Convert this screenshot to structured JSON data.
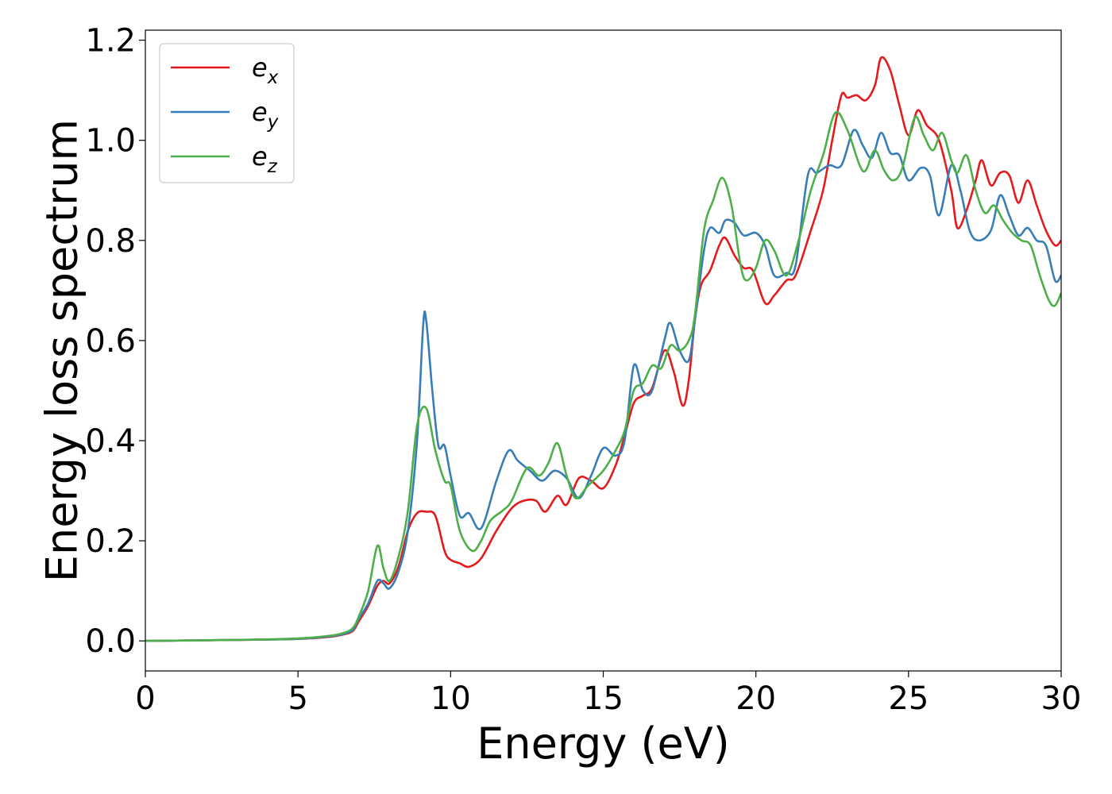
{
  "chart_data": {
    "type": "line",
    "xlabel": "Energy (eV)",
    "ylabel": "Energy loss spectrum",
    "xlim": [
      0,
      30
    ],
    "ylim": [
      -0.06,
      1.22
    ],
    "xticks": [
      0,
      5,
      10,
      15,
      20,
      25,
      30
    ],
    "yticks": [
      0.0,
      0.2,
      0.4,
      0.6,
      0.8,
      1.0,
      1.2
    ],
    "xtick_labels": [
      "0",
      "5",
      "10",
      "15",
      "20",
      "25",
      "30"
    ],
    "ytick_labels": [
      "0.0",
      "0.2",
      "0.4",
      "0.6",
      "0.8",
      "1.0",
      "1.2"
    ],
    "grid": false,
    "legend_position": "top-left",
    "series": [
      {
        "name": "e_x",
        "label_base": "e",
        "label_sub": "x",
        "color": "#e41a1c",
        "points": [
          [
            0,
            0.0
          ],
          [
            3,
            0.002
          ],
          [
            5,
            0.004
          ],
          [
            6,
            0.008
          ],
          [
            6.5,
            0.013
          ],
          [
            6.8,
            0.02
          ],
          [
            7.0,
            0.04
          ],
          [
            7.3,
            0.07
          ],
          [
            7.6,
            0.11
          ],
          [
            7.8,
            0.12
          ],
          [
            8.0,
            0.115
          ],
          [
            8.3,
            0.15
          ],
          [
            8.6,
            0.22
          ],
          [
            8.9,
            0.255
          ],
          [
            9.2,
            0.258
          ],
          [
            9.5,
            0.25
          ],
          [
            9.8,
            0.18
          ],
          [
            10.0,
            0.162
          ],
          [
            10.3,
            0.155
          ],
          [
            10.6,
            0.148
          ],
          [
            11.0,
            0.165
          ],
          [
            11.5,
            0.22
          ],
          [
            12.0,
            0.265
          ],
          [
            12.4,
            0.28
          ],
          [
            12.8,
            0.28
          ],
          [
            13.1,
            0.258
          ],
          [
            13.5,
            0.29
          ],
          [
            13.8,
            0.272
          ],
          [
            14.2,
            0.325
          ],
          [
            14.6,
            0.32
          ],
          [
            15.0,
            0.305
          ],
          [
            15.4,
            0.35
          ],
          [
            15.7,
            0.41
          ],
          [
            16.0,
            0.475
          ],
          [
            16.3,
            0.49
          ],
          [
            16.6,
            0.505
          ],
          [
            17.0,
            0.58
          ],
          [
            17.3,
            0.54
          ],
          [
            17.6,
            0.47
          ],
          [
            17.8,
            0.52
          ],
          [
            18.0,
            0.64
          ],
          [
            18.2,
            0.71
          ],
          [
            18.5,
            0.74
          ],
          [
            18.8,
            0.79
          ],
          [
            19.0,
            0.805
          ],
          [
            19.3,
            0.77
          ],
          [
            19.6,
            0.745
          ],
          [
            19.9,
            0.74
          ],
          [
            20.3,
            0.675
          ],
          [
            20.6,
            0.69
          ],
          [
            21.0,
            0.72
          ],
          [
            21.3,
            0.73
          ],
          [
            21.8,
            0.82
          ],
          [
            22.2,
            0.9
          ],
          [
            22.5,
            1.0
          ],
          [
            22.8,
            1.09
          ],
          [
            23.0,
            1.085
          ],
          [
            23.3,
            1.09
          ],
          [
            23.6,
            1.08
          ],
          [
            23.9,
            1.11
          ],
          [
            24.1,
            1.165
          ],
          [
            24.4,
            1.14
          ],
          [
            24.7,
            1.07
          ],
          [
            25.0,
            1.01
          ],
          [
            25.3,
            1.06
          ],
          [
            25.6,
            1.03
          ],
          [
            26.0,
            1.0
          ],
          [
            26.4,
            0.9
          ],
          [
            26.6,
            0.825
          ],
          [
            26.9,
            0.86
          ],
          [
            27.2,
            0.92
          ],
          [
            27.4,
            0.96
          ],
          [
            27.7,
            0.91
          ],
          [
            28.0,
            0.935
          ],
          [
            28.3,
            0.93
          ],
          [
            28.6,
            0.875
          ],
          [
            28.9,
            0.92
          ],
          [
            29.2,
            0.87
          ],
          [
            29.5,
            0.82
          ],
          [
            29.8,
            0.79
          ],
          [
            30.0,
            0.8
          ]
        ]
      },
      {
        "name": "e_y",
        "label_base": "e",
        "label_sub": "y",
        "color": "#377eb8",
        "points": [
          [
            0,
            0.0
          ],
          [
            3,
            0.002
          ],
          [
            5,
            0.004
          ],
          [
            6,
            0.009
          ],
          [
            6.5,
            0.014
          ],
          [
            6.8,
            0.022
          ],
          [
            7.0,
            0.045
          ],
          [
            7.3,
            0.075
          ],
          [
            7.6,
            0.12
          ],
          [
            7.8,
            0.115
          ],
          [
            8.0,
            0.105
          ],
          [
            8.3,
            0.14
          ],
          [
            8.6,
            0.22
          ],
          [
            8.9,
            0.4
          ],
          [
            9.1,
            0.63
          ],
          [
            9.2,
            0.64
          ],
          [
            9.4,
            0.5
          ],
          [
            9.6,
            0.39
          ],
          [
            9.8,
            0.39
          ],
          [
            10.0,
            0.33
          ],
          [
            10.3,
            0.25
          ],
          [
            10.6,
            0.255
          ],
          [
            11.0,
            0.225
          ],
          [
            11.5,
            0.32
          ],
          [
            11.9,
            0.38
          ],
          [
            12.2,
            0.36
          ],
          [
            12.6,
            0.34
          ],
          [
            13.0,
            0.32
          ],
          [
            13.4,
            0.34
          ],
          [
            13.8,
            0.325
          ],
          [
            14.2,
            0.285
          ],
          [
            14.6,
            0.33
          ],
          [
            15.0,
            0.385
          ],
          [
            15.4,
            0.37
          ],
          [
            15.7,
            0.4
          ],
          [
            16.0,
            0.55
          ],
          [
            16.3,
            0.5
          ],
          [
            16.6,
            0.5
          ],
          [
            17.0,
            0.6
          ],
          [
            17.2,
            0.635
          ],
          [
            17.5,
            0.58
          ],
          [
            17.8,
            0.56
          ],
          [
            18.0,
            0.64
          ],
          [
            18.3,
            0.78
          ],
          [
            18.5,
            0.825
          ],
          [
            18.8,
            0.815
          ],
          [
            19.0,
            0.84
          ],
          [
            19.3,
            0.835
          ],
          [
            19.6,
            0.81
          ],
          [
            20.0,
            0.815
          ],
          [
            20.3,
            0.79
          ],
          [
            20.6,
            0.73
          ],
          [
            21.0,
            0.735
          ],
          [
            21.3,
            0.75
          ],
          [
            21.7,
            0.93
          ],
          [
            22.0,
            0.935
          ],
          [
            22.4,
            0.95
          ],
          [
            22.8,
            0.95
          ],
          [
            23.2,
            1.02
          ],
          [
            23.5,
            0.99
          ],
          [
            23.8,
            0.965
          ],
          [
            24.1,
            1.015
          ],
          [
            24.4,
            0.975
          ],
          [
            24.7,
            0.97
          ],
          [
            25.0,
            0.92
          ],
          [
            25.4,
            0.945
          ],
          [
            25.7,
            0.93
          ],
          [
            26.0,
            0.85
          ],
          [
            26.4,
            0.95
          ],
          [
            26.7,
            0.9
          ],
          [
            27.0,
            0.82
          ],
          [
            27.3,
            0.8
          ],
          [
            27.7,
            0.82
          ],
          [
            28.0,
            0.89
          ],
          [
            28.3,
            0.85
          ],
          [
            28.6,
            0.81
          ],
          [
            28.9,
            0.825
          ],
          [
            29.2,
            0.8
          ],
          [
            29.5,
            0.79
          ],
          [
            29.8,
            0.72
          ],
          [
            30.0,
            0.73
          ]
        ]
      },
      {
        "name": "e_z",
        "label_base": "e",
        "label_sub": "z",
        "color": "#4daf4a",
        "points": [
          [
            0,
            0.0
          ],
          [
            3,
            0.002
          ],
          [
            5,
            0.005
          ],
          [
            6,
            0.01
          ],
          [
            6.5,
            0.016
          ],
          [
            6.8,
            0.026
          ],
          [
            7.0,
            0.05
          ],
          [
            7.3,
            0.1
          ],
          [
            7.6,
            0.19
          ],
          [
            7.8,
            0.145
          ],
          [
            8.0,
            0.12
          ],
          [
            8.3,
            0.17
          ],
          [
            8.6,
            0.26
          ],
          [
            8.9,
            0.43
          ],
          [
            9.2,
            0.465
          ],
          [
            9.5,
            0.38
          ],
          [
            9.8,
            0.32
          ],
          [
            10.0,
            0.31
          ],
          [
            10.3,
            0.22
          ],
          [
            10.7,
            0.18
          ],
          [
            11.0,
            0.2
          ],
          [
            11.3,
            0.24
          ],
          [
            11.7,
            0.26
          ],
          [
            12.0,
            0.28
          ],
          [
            12.5,
            0.345
          ],
          [
            12.9,
            0.33
          ],
          [
            13.2,
            0.355
          ],
          [
            13.5,
            0.395
          ],
          [
            13.8,
            0.33
          ],
          [
            14.1,
            0.285
          ],
          [
            14.5,
            0.31
          ],
          [
            15.0,
            0.34
          ],
          [
            15.4,
            0.38
          ],
          [
            15.7,
            0.42
          ],
          [
            16.0,
            0.5
          ],
          [
            16.3,
            0.515
          ],
          [
            16.6,
            0.55
          ],
          [
            16.9,
            0.545
          ],
          [
            17.2,
            0.59
          ],
          [
            17.5,
            0.58
          ],
          [
            17.8,
            0.6
          ],
          [
            18.0,
            0.65
          ],
          [
            18.3,
            0.82
          ],
          [
            18.6,
            0.88
          ],
          [
            18.9,
            0.925
          ],
          [
            19.2,
            0.87
          ],
          [
            19.5,
            0.75
          ],
          [
            19.7,
            0.72
          ],
          [
            20.0,
            0.745
          ],
          [
            20.3,
            0.8
          ],
          [
            20.6,
            0.78
          ],
          [
            21.0,
            0.73
          ],
          [
            21.4,
            0.8
          ],
          [
            21.8,
            0.9
          ],
          [
            22.2,
            0.97
          ],
          [
            22.6,
            1.055
          ],
          [
            23.0,
            1.02
          ],
          [
            23.4,
            0.95
          ],
          [
            23.6,
            0.94
          ],
          [
            23.9,
            0.98
          ],
          [
            24.2,
            0.94
          ],
          [
            24.5,
            0.92
          ],
          [
            24.8,
            0.945
          ],
          [
            25.2,
            1.045
          ],
          [
            25.5,
            1.01
          ],
          [
            25.8,
            0.98
          ],
          [
            26.1,
            1.015
          ],
          [
            26.4,
            0.96
          ],
          [
            26.6,
            0.935
          ],
          [
            26.9,
            0.97
          ],
          [
            27.2,
            0.9
          ],
          [
            27.5,
            0.855
          ],
          [
            27.8,
            0.87
          ],
          [
            28.1,
            0.84
          ],
          [
            28.4,
            0.815
          ],
          [
            28.7,
            0.8
          ],
          [
            29.0,
            0.79
          ],
          [
            29.3,
            0.73
          ],
          [
            29.6,
            0.68
          ],
          [
            29.8,
            0.67
          ],
          [
            30.0,
            0.695
          ]
        ]
      }
    ]
  }
}
